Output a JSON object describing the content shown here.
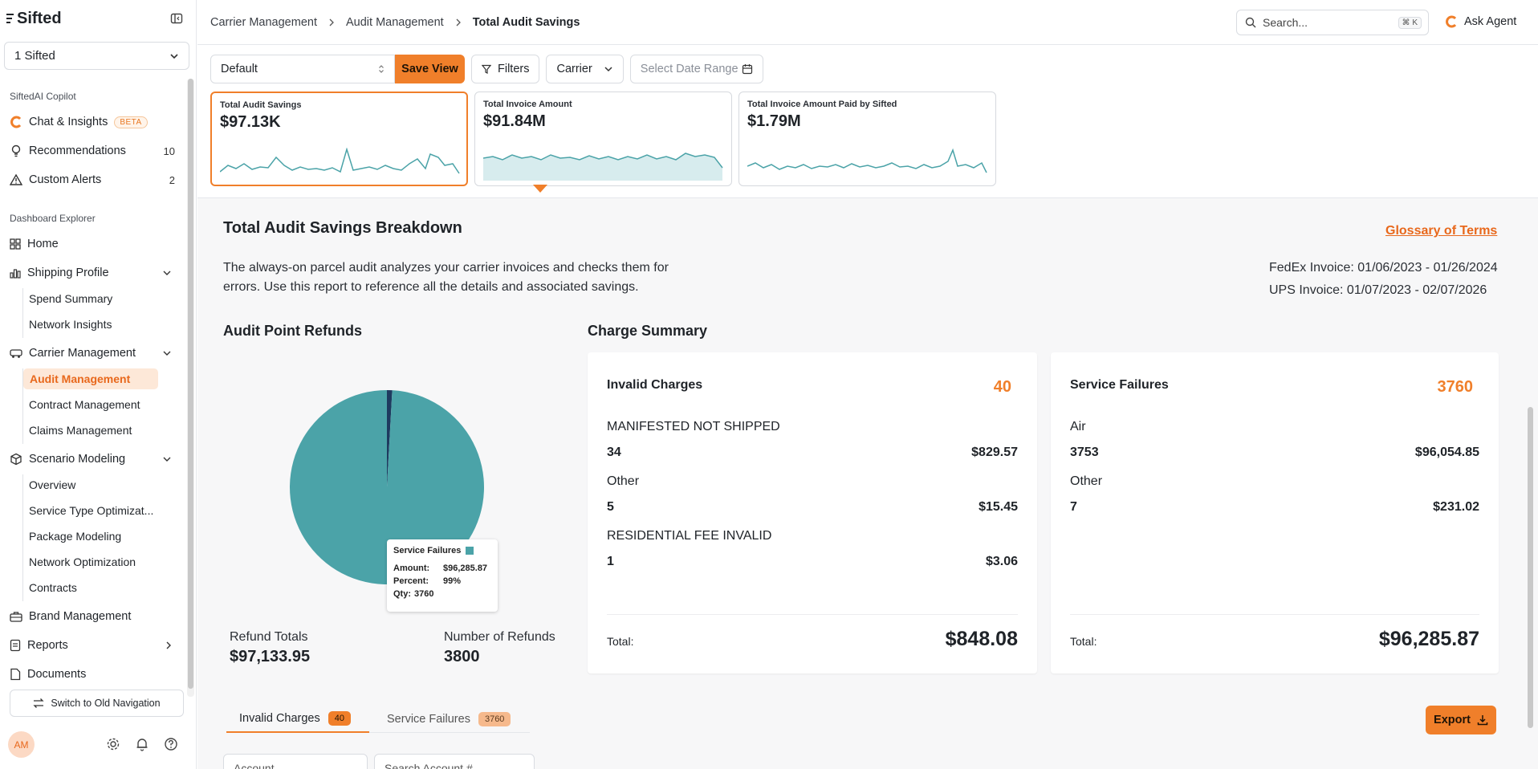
{
  "app": {
    "logo": "Sifted",
    "org": "1 Sifted"
  },
  "colors": {
    "accent": "#f07f2a",
    "teal": "#4ba3a8",
    "navy": "#1e3a5f"
  },
  "sidebar": {
    "copilot_title": "SiftedAI Copilot",
    "chat": "Chat & Insights",
    "beta": "BETA",
    "recommendations": "Recommendations",
    "rec_count": "10",
    "alerts": "Custom Alerts",
    "alerts_count": "2",
    "explorer_title": "Dashboard Explorer",
    "home": "Home",
    "shipping": "Shipping Profile",
    "spend": "Spend Summary",
    "network": "Network Insights",
    "carrier": "Carrier Management",
    "audit": "Audit Management",
    "contract": "Contract Management",
    "claims": "Claims Management",
    "scenario": "Scenario Modeling",
    "overview": "Overview",
    "service_type": "Service Type Optimizat...",
    "package": "Package Modeling",
    "network_opt": "Network Optimization",
    "contracts": "Contracts",
    "brand": "Brand Management",
    "reports": "Reports",
    "documents": "Documents",
    "old_nav": "Switch to Old Navigation",
    "avatar": "AM"
  },
  "header": {
    "crumbs": [
      "Carrier Management",
      "Audit Management",
      "Total Audit Savings"
    ],
    "search_placeholder": "Search...",
    "kbd": "⌘ K",
    "ask_agent": "Ask Agent"
  },
  "toolbar": {
    "view": "Default",
    "save": "Save View",
    "filters": "Filters",
    "carrier": "Carrier",
    "date_placeholder": "Select Date Range"
  },
  "cards": [
    {
      "label": "Total Audit Savings",
      "value": "$97.13K"
    },
    {
      "label": "Total Invoice Amount",
      "value": "$91.84M"
    },
    {
      "label": "Total Invoice Amount Paid by Sifted",
      "value": "$1.79M"
    }
  ],
  "breakdown": {
    "title": "Total Audit Savings Breakdown",
    "glossary": "Glossary of Terms",
    "description": "The always-on parcel audit analyzes your carrier invoices and checks them for errors. Use this report to reference all the details and associated savings.",
    "fedex": "FedEx Invoice: 01/06/2023 - 01/26/2024",
    "ups": "UPS Invoice: 01/07/2023 - 02/07/2026"
  },
  "refunds": {
    "title": "Audit Point Refunds",
    "tooltip": {
      "title": "Service Failures",
      "amount_label": "Amount:",
      "amount": "$96,285.87",
      "percent_label": "Percent:",
      "percent": "99%",
      "qty_label": "Qty:",
      "qty": "3760"
    },
    "totals_label": "Refund Totals",
    "totals": "$97,133.95",
    "count_label": "Number of Refunds",
    "count": "3800"
  },
  "chart_data": {
    "type": "pie",
    "title": "Audit Point Refunds",
    "categories": [
      "Service Failures",
      "Invalid Charges"
    ],
    "values": [
      96285.87,
      848.08
    ],
    "colors": [
      "#4ba3a8",
      "#1e3a5f"
    ]
  },
  "summary": {
    "title": "Charge Summary",
    "invalid": {
      "title": "Invalid Charges",
      "count": "40",
      "rows": [
        {
          "name": "MANIFESTED NOT SHIPPED",
          "qty": "34",
          "amt": "$829.57"
        },
        {
          "name": "Other",
          "qty": "5",
          "amt": "$15.45"
        },
        {
          "name": "RESIDENTIAL FEE INVALID",
          "qty": "1",
          "amt": "$3.06"
        }
      ],
      "total_label": "Total:",
      "total": "$848.08"
    },
    "failures": {
      "title": "Service Failures",
      "count": "3760",
      "rows": [
        {
          "name": "Air",
          "qty": "3753",
          "amt": "$96,054.85"
        },
        {
          "name": "Other",
          "qty": "7",
          "amt": "$231.02"
        }
      ],
      "total_label": "Total:",
      "total": "$96,285.87"
    }
  },
  "table": {
    "tab1": "Invalid Charges",
    "tab1_count": "40",
    "tab2": "Service Failures",
    "tab2_count": "3760",
    "export": "Export",
    "account": "Account",
    "search_account": "Search Account #"
  }
}
